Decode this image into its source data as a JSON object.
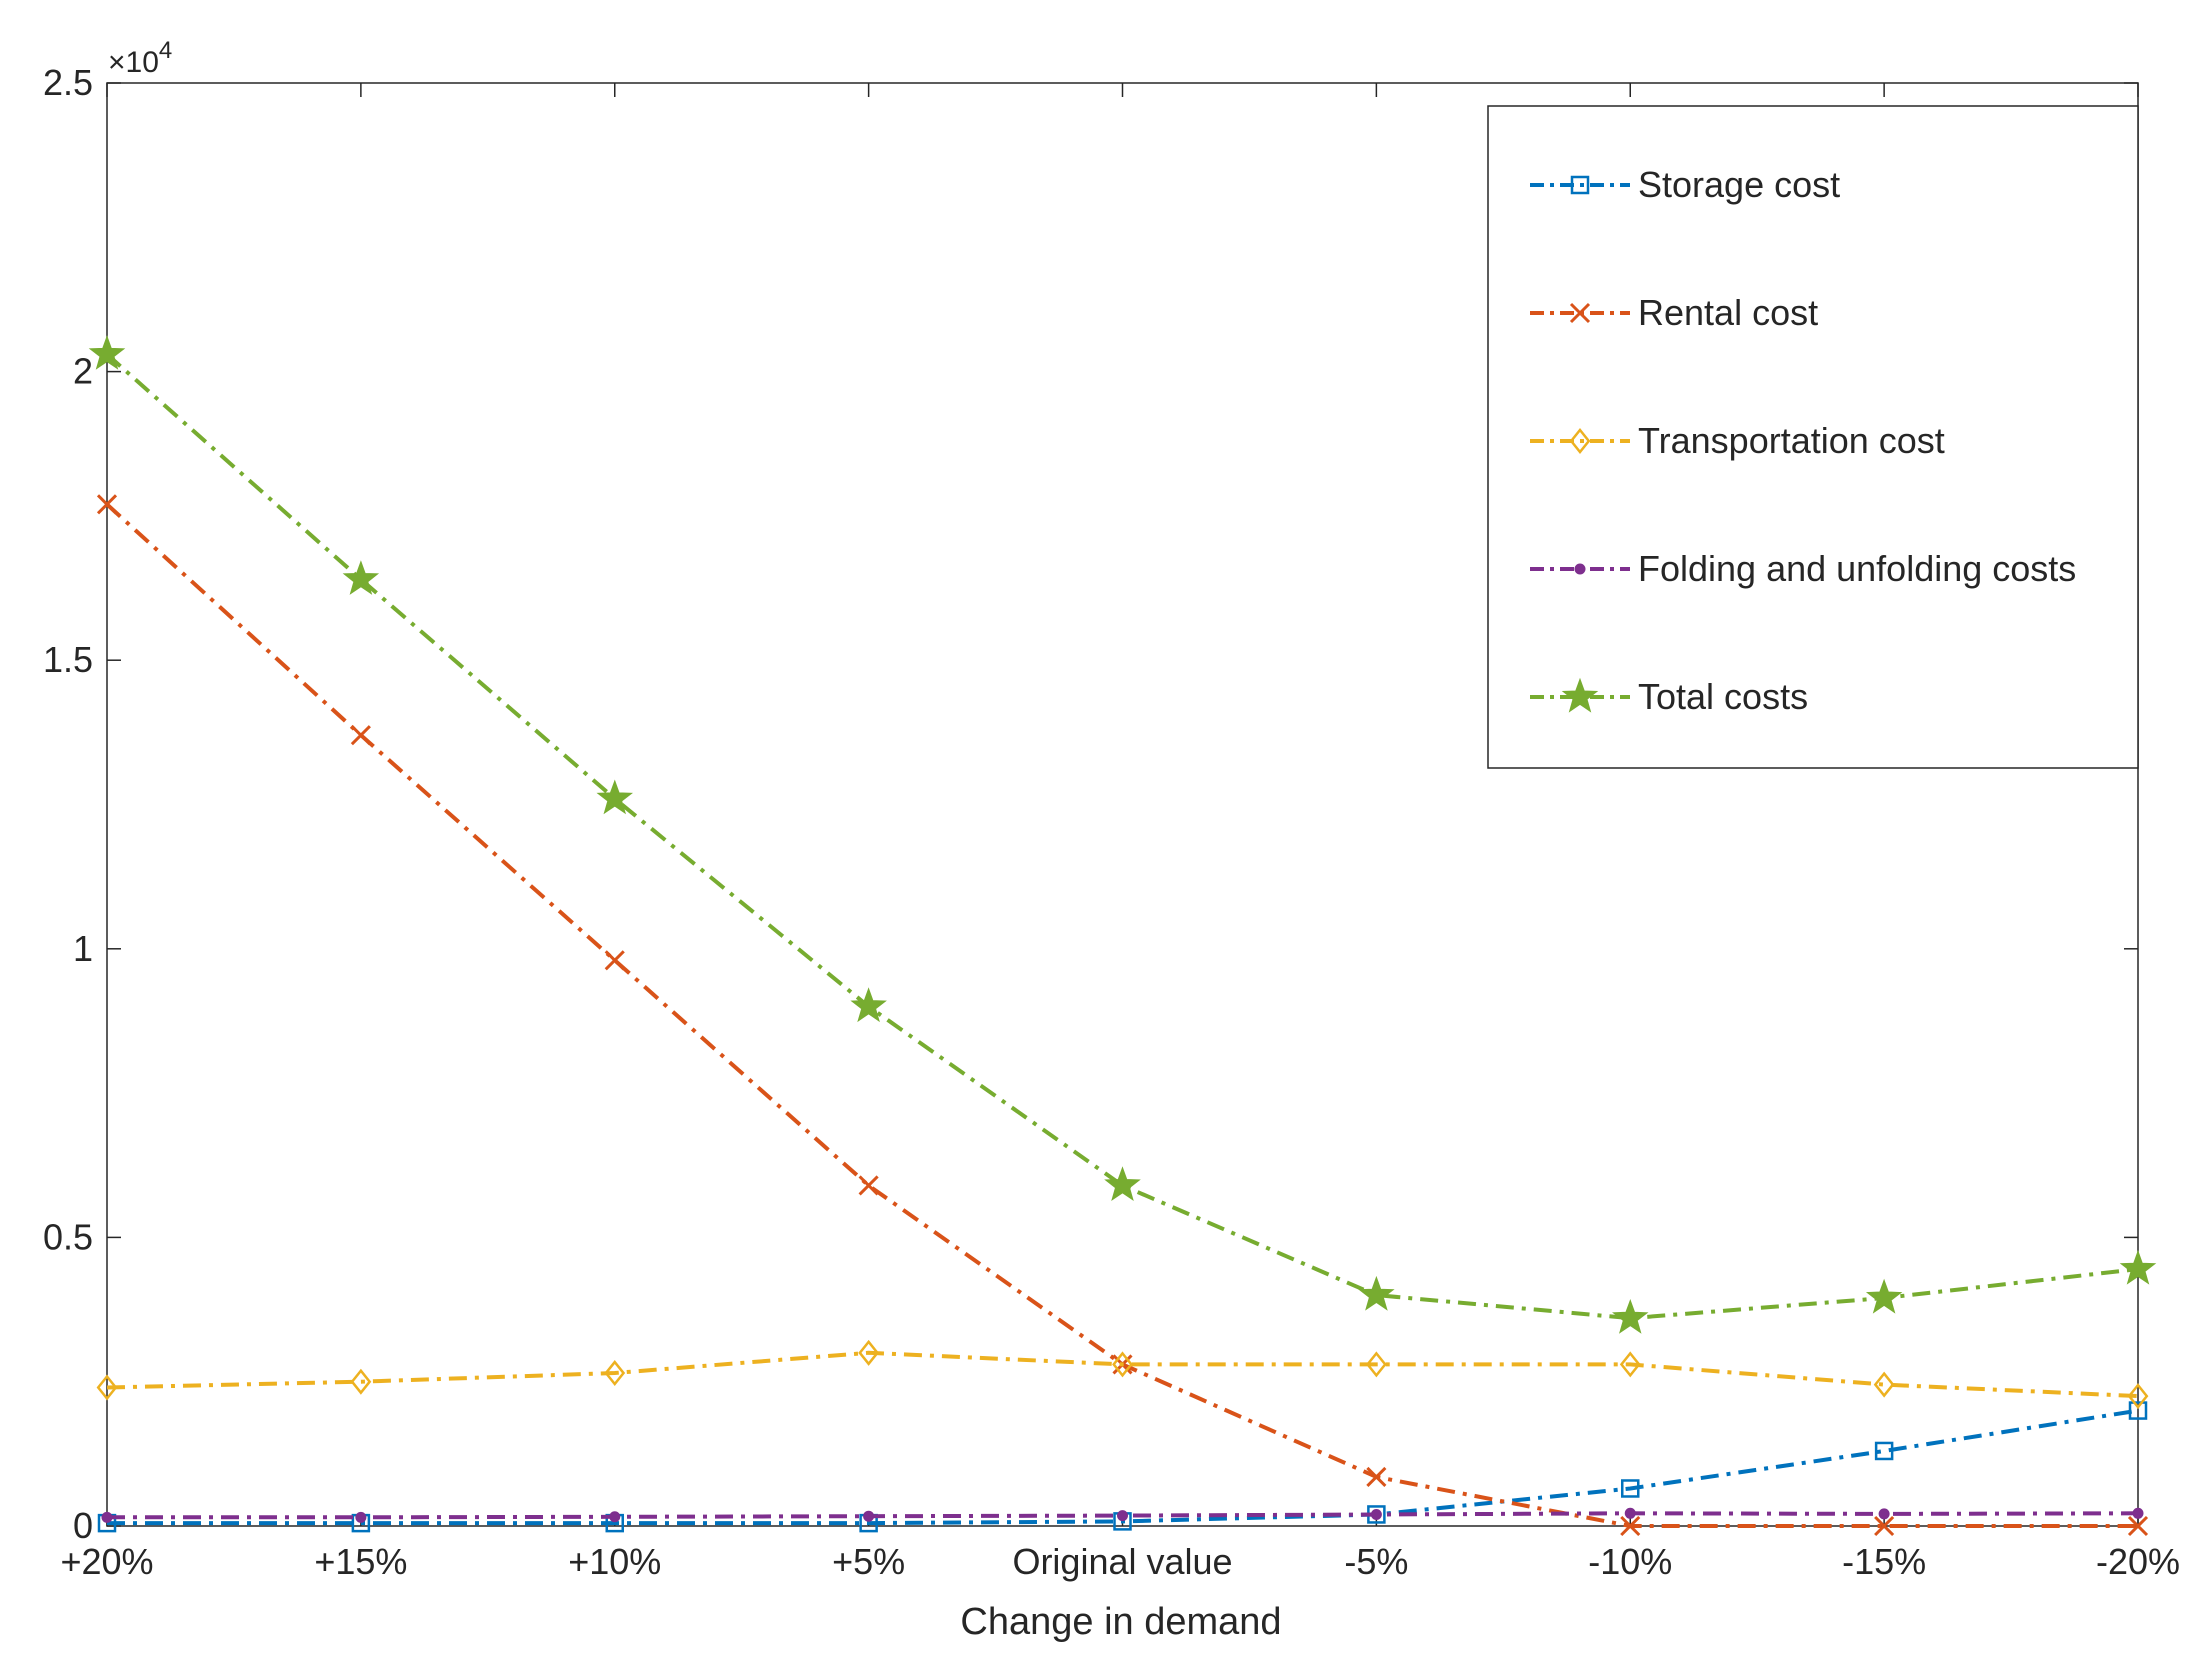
{
  "chart_data": {
    "type": "line",
    "title": "",
    "xlabel": "Change in demand",
    "ylabel": "",
    "y_scale_label": "×10",
    "y_scale_exponent": "4",
    "categories": [
      "+20%",
      "+15%",
      "+10%",
      "+5%",
      "Original value",
      "-5%",
      "-10%",
      "-15%",
      "-20%"
    ],
    "ylim": [
      0,
      25000
    ],
    "yticks": [
      0,
      5000,
      10000,
      15000,
      20000,
      25000
    ],
    "ytick_labels": [
      "0",
      "0.5",
      "1",
      "1.5",
      "2",
      "2.5"
    ],
    "grid": false,
    "legend_position": "top-right",
    "series": [
      {
        "name": "Storage cost",
        "color": "#0072BD",
        "marker": "square",
        "values": [
          50,
          50,
          50,
          50,
          80,
          200,
          650,
          1300,
          2000
        ]
      },
      {
        "name": "Rental cost",
        "color": "#D95319",
        "marker": "x",
        "values": [
          17700,
          13700,
          9800,
          5900,
          2800,
          850,
          0,
          0,
          0
        ]
      },
      {
        "name": "Transportation cost",
        "color": "#EDB120",
        "marker": "diamond",
        "values": [
          2400,
          2500,
          2650,
          3000,
          2800,
          2800,
          2800,
          2450,
          2250
        ]
      },
      {
        "name": "Folding and unfolding costs",
        "color": "#7E2F8E",
        "marker": "dot",
        "values": [
          150,
          150,
          160,
          170,
          180,
          200,
          220,
          210,
          220
        ]
      },
      {
        "name": "Total costs",
        "color": "#77AC30",
        "marker": "star",
        "values": [
          20300,
          16400,
          12600,
          9000,
          5900,
          4000,
          3600,
          3950,
          4450
        ]
      }
    ]
  }
}
